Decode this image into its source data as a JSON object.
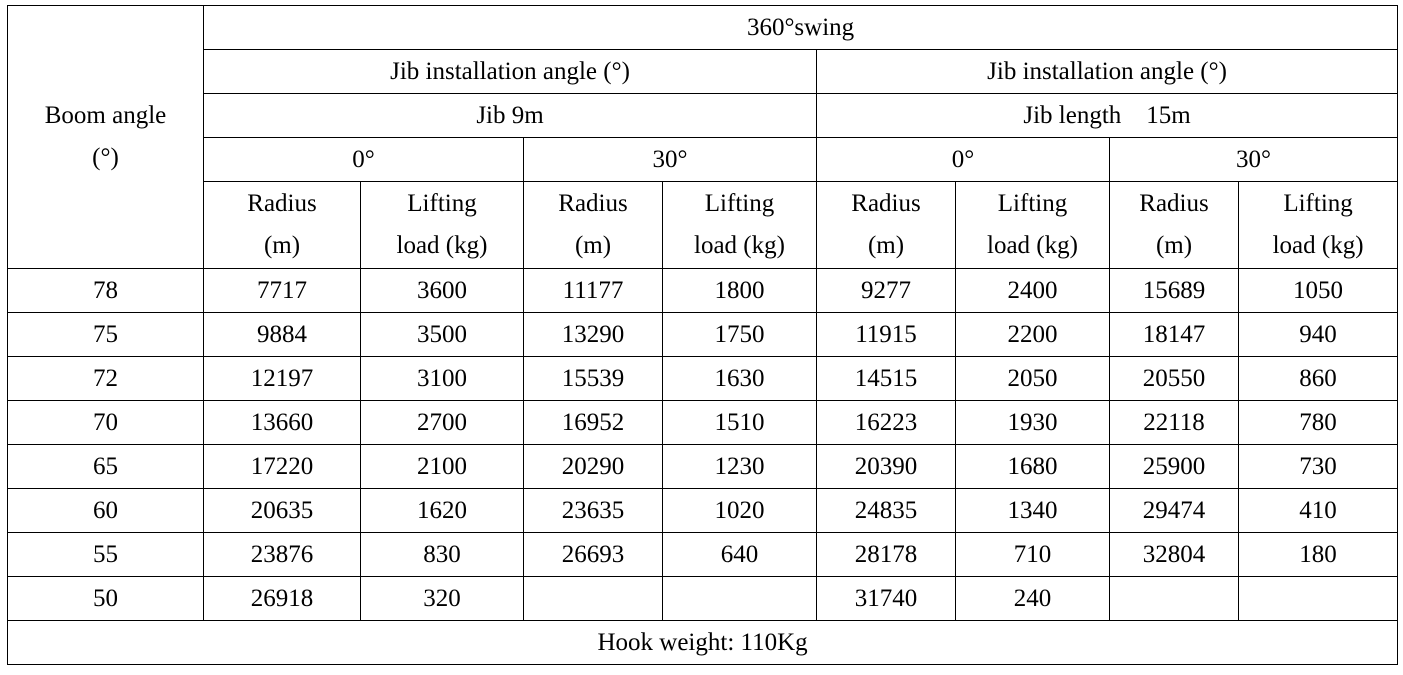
{
  "header": {
    "swing": "360°swing",
    "boom_angle": [
      "Boom angle",
      "(°)"
    ],
    "jib_installation_angle_left": "Jib installation angle (°)",
    "jib_installation_angle_right": "Jib installation angle (°)",
    "jib_left": "Jib 9m",
    "jib_right": "Jib length    15m",
    "angles": [
      "0°",
      "30°",
      "0°",
      "30°"
    ],
    "radius": [
      "Radius",
      "(m)"
    ],
    "lifting_load": [
      "Lifting",
      "load (kg)"
    ]
  },
  "rows": [
    {
      "boom_angle": "78",
      "cells": [
        "7717",
        "3600",
        "11177",
        "1800",
        "9277",
        "2400",
        "15689",
        "1050"
      ]
    },
    {
      "boom_angle": "75",
      "cells": [
        "9884",
        "3500",
        "13290",
        "1750",
        "11915",
        "2200",
        "18147",
        "940"
      ]
    },
    {
      "boom_angle": "72",
      "cells": [
        "12197",
        "3100",
        "15539",
        "1630",
        "14515",
        "2050",
        "20550",
        "860"
      ]
    },
    {
      "boom_angle": "70",
      "cells": [
        "13660",
        "2700",
        "16952",
        "1510",
        "16223",
        "1930",
        "22118",
        "780"
      ]
    },
    {
      "boom_angle": "65",
      "cells": [
        "17220",
        "2100",
        "20290",
        "1230",
        "20390",
        "1680",
        "25900",
        "730"
      ]
    },
    {
      "boom_angle": "60",
      "cells": [
        "20635",
        "1620",
        "23635",
        "1020",
        "24835",
        "1340",
        "29474",
        "410"
      ]
    },
    {
      "boom_angle": "55",
      "cells": [
        "23876",
        "830",
        "26693",
        "640",
        "28178",
        "710",
        "32804",
        "180"
      ]
    },
    {
      "boom_angle": "50",
      "cells": [
        "26918",
        "320",
        "",
        "",
        "31740",
        "240",
        "",
        ""
      ]
    }
  ],
  "footer": {
    "hook_weight": "Hook weight: 110Kg"
  }
}
